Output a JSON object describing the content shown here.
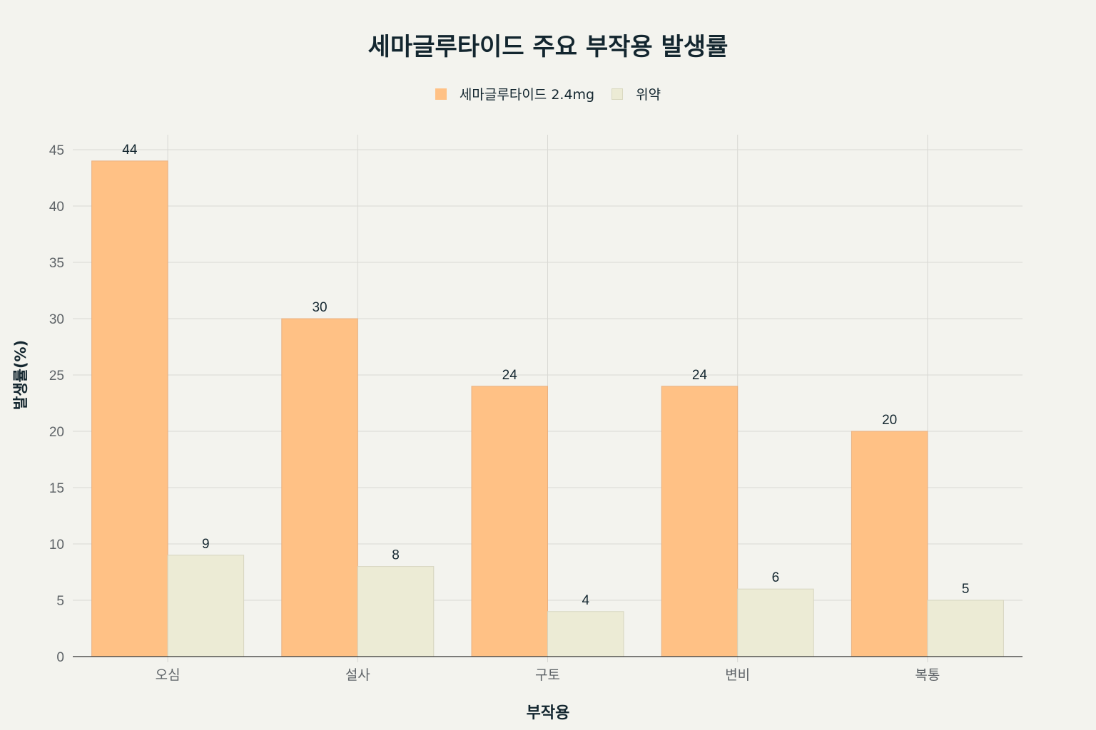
{
  "chart_data": {
    "type": "bar",
    "title": "세마글루타이드 주요 부작용 발생률",
    "xlabel": "부작용",
    "ylabel": "발생률(%)",
    "categories": [
      "오심",
      "설사",
      "구토",
      "변비",
      "복통"
    ],
    "series": [
      {
        "name": "세마글루타이드 2.4mg",
        "values": [
          44,
          30,
          24,
          24,
          20
        ],
        "color": "#ffc185"
      },
      {
        "name": "위약",
        "values": [
          9,
          8,
          4,
          6,
          5
        ],
        "color": "#ecebd5"
      }
    ],
    "ylim": [
      0,
      45
    ],
    "yticks": [
      0,
      5,
      10,
      15,
      20,
      25,
      30,
      35,
      40,
      45
    ],
    "grid": true,
    "legend_position": "top",
    "data_labels": true
  },
  "colors": {
    "background": "#f3f3ee",
    "text": "#13262f",
    "tick_text": "#5f6468",
    "grid": "#d9d9d4"
  }
}
